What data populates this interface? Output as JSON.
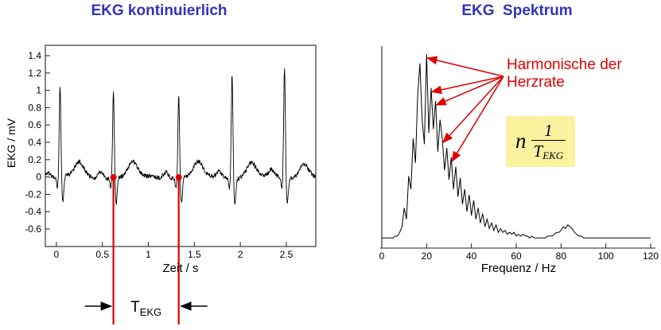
{
  "titles": {
    "left": "EKG kontinuierlich",
    "right": "EKG  Spektrum"
  },
  "colors": {
    "title_blue": "#3333bb",
    "red": "#dd0000",
    "black": "#000000",
    "formula_bg": "#fbf2a0"
  },
  "chart_data": [
    {
      "type": "line",
      "title": "EKG kontinuierlich",
      "xlabel": "Zeit / s",
      "ylabel": "EKG / mV",
      "xlim": [
        -0.12,
        2.82
      ],
      "ylim": [
        -0.8,
        1.52
      ],
      "xticks": [
        "0",
        "0.5",
        "1",
        "1.5",
        "2",
        "2.5"
      ],
      "yticks": [
        "1.4",
        "1.2",
        "1",
        "0.8",
        "0.6",
        "0.4",
        "0.2",
        "0",
        "-0.2",
        "-0.4",
        "-0.6"
      ],
      "beats_s": [
        0.04,
        0.62,
        1.33,
        1.91,
        2.48
      ],
      "r_amplitudes_mV": [
        1.05,
        1.0,
        0.95,
        1.18,
        1.28
      ],
      "marked_beats_s": [
        0.62,
        1.33
      ],
      "interval_label": "T",
      "interval_label_sub": "EKG",
      "line_color": "#000000",
      "marker_color": "#dd0000",
      "grid": false
    },
    {
      "type": "line",
      "title": "EKG Spektrum",
      "xlabel": "Frequenz / Hz",
      "xlim": [
        0,
        122
      ],
      "ylim": [
        0,
        1.05
      ],
      "xticks": [
        "0",
        "20",
        "40",
        "60",
        "80",
        "100",
        "120"
      ],
      "x_step_hz": 1,
      "values": [
        0.02,
        0.02,
        0.02,
        0.02,
        0.02,
        0.02,
        0.03,
        0.03,
        0.05,
        0.08,
        0.18,
        0.12,
        0.35,
        0.28,
        0.55,
        0.42,
        0.78,
        0.95,
        0.65,
        0.52,
        1.0,
        0.58,
        0.82,
        0.6,
        0.75,
        0.48,
        0.65,
        0.55,
        0.38,
        0.5,
        0.33,
        0.45,
        0.28,
        0.4,
        0.24,
        0.34,
        0.2,
        0.28,
        0.16,
        0.25,
        0.14,
        0.22,
        0.12,
        0.18,
        0.1,
        0.15,
        0.08,
        0.12,
        0.07,
        0.1,
        0.06,
        0.09,
        0.05,
        0.07,
        0.05,
        0.06,
        0.04,
        0.05,
        0.04,
        0.05,
        0.03,
        0.04,
        0.03,
        0.04,
        0.03,
        0.03,
        0.02,
        0.03,
        0.02,
        0.02,
        0.02,
        0.02,
        0.02,
        0.02,
        0.03,
        0.03,
        0.03,
        0.04,
        0.05,
        0.05,
        0.06,
        0.08,
        0.07,
        0.09,
        0.08,
        0.07,
        0.05,
        0.04,
        0.03,
        0.03,
        0.02,
        0.02,
        0.02,
        0.02,
        0.02,
        0.02,
        0.02,
        0.02,
        0.02,
        0.02,
        0.02,
        0.02,
        0.02,
        0.02,
        0.02,
        0.02,
        0.02,
        0.02,
        0.02,
        0.02,
        0.02,
        0.02,
        0.02,
        0.02,
        0.02,
        0.02,
        0.02,
        0.02,
        0.02,
        0.02,
        0.02
      ],
      "harmonics_marked_hz": [
        20,
        22,
        24,
        27,
        31
      ],
      "annotation": {
        "line1": "Harmonische der",
        "line2": "Herzrate"
      },
      "formula": {
        "factor": "n",
        "numerator": "1",
        "denominator_base": "T",
        "denominator_sub": "EKG"
      },
      "line_color": "#000000",
      "grid": false
    }
  ]
}
